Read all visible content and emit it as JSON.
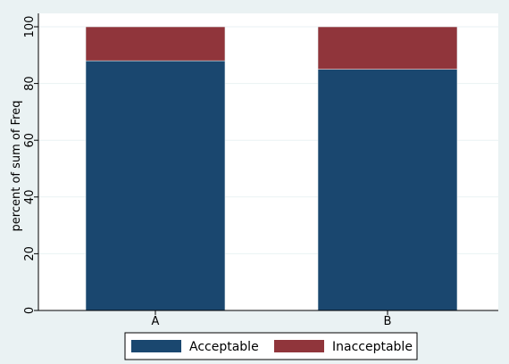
{
  "chart_data": {
    "type": "bar",
    "stacked": true,
    "categories": [
      "A",
      "B"
    ],
    "series": [
      {
        "name": "Acceptable",
        "values": [
          88,
          85
        ],
        "color": "#1a476f"
      },
      {
        "name": "Inacceptable",
        "values": [
          12,
          15
        ],
        "color": "#90353b"
      }
    ],
    "ylabel": "percent of sum of Freq",
    "xlabel": "",
    "ylim": [
      0,
      100
    ],
    "yticks": [
      0,
      20,
      40,
      60,
      80,
      100
    ],
    "grid": true,
    "legend_position": "bottom"
  },
  "colors": {
    "background": "#eaf2f3",
    "plot_background": "#ffffff",
    "grid": "#eaf2f3"
  }
}
